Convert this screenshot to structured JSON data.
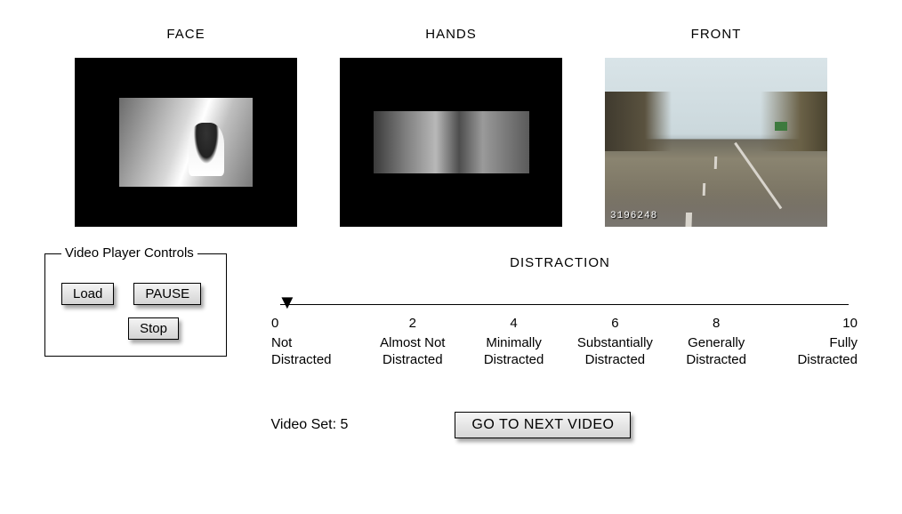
{
  "videos": {
    "face": {
      "label": "FACE"
    },
    "hands": {
      "label": "HANDS"
    },
    "front": {
      "label": "FRONT",
      "timestamp_overlay": "3196248"
    }
  },
  "controls": {
    "legend": "Video Player Controls",
    "load": "Load",
    "pause": "PAUSE",
    "stop": "Stop"
  },
  "distraction": {
    "title": "DISTRACTION",
    "current_value": 0,
    "scale": [
      {
        "value": "0",
        "line1": "Not",
        "line2": "Distracted"
      },
      {
        "value": "2",
        "line1": "Almost Not",
        "line2": "Distracted"
      },
      {
        "value": "4",
        "line1": "Minimally",
        "line2": "Distracted"
      },
      {
        "value": "6",
        "line1": "Substantially",
        "line2": "Distracted"
      },
      {
        "value": "8",
        "line1": "Generally",
        "line2": "Distracted"
      },
      {
        "value": "10",
        "line1": "Fully",
        "line2": "Distracted"
      }
    ]
  },
  "footer": {
    "video_set_label": "Video Set: ",
    "video_set_value": "5",
    "next_button": "GO TO NEXT VIDEO"
  }
}
